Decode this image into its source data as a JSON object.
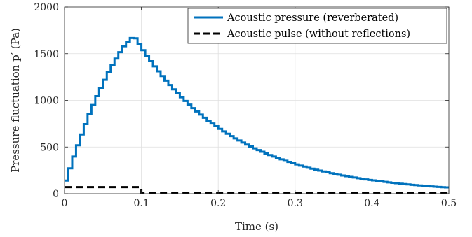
{
  "chart_data": {
    "type": "line",
    "title": "",
    "xlabel": "Time (s)",
    "ylabel": "Pressure fluctuation p′ (Pa)",
    "xlim": [
      0,
      0.5
    ],
    "ylim": [
      0,
      2000
    ],
    "xticks": [
      0,
      0.1,
      0.2,
      0.3,
      0.4,
      0.5
    ],
    "xtick_labels": [
      "0",
      "0.1",
      "0.2",
      "0.3",
      "0.4",
      "0.5"
    ],
    "yticks": [
      0,
      500,
      1000,
      1500,
      2000
    ],
    "ytick_labels": [
      "0",
      "500",
      "1000",
      "1500",
      "2000"
    ],
    "grid": true,
    "legend_position": "top-right",
    "series": [
      {
        "name": "Acoustic pressure (reverberated)",
        "color": "#0072BD",
        "style": "solid",
        "step_duration": 0.005,
        "values": [
          140,
          272,
          398,
          519,
          635,
          745,
          850,
          950,
          1045,
          1135,
          1220,
          1300,
          1376,
          1448,
          1516,
          1580,
          1625,
          1668,
          1665,
          1600,
          1537,
          1477,
          1419,
          1364,
          1311,
          1260,
          1211,
          1164,
          1118,
          1075,
          1033,
          993,
          954,
          917,
          881,
          847,
          814,
          782,
          752,
          723,
          695,
          668,
          642,
          617,
          593,
          570,
          548,
          526,
          506,
          486,
          467,
          449,
          431,
          414,
          398,
          383,
          368,
          353,
          340,
          326,
          314,
          301,
          290,
          278,
          268,
          257,
          247,
          238,
          228,
          219,
          211,
          203,
          195,
          187,
          180,
          173,
          166,
          160,
          153,
          147,
          142,
          136,
          131,
          126,
          121,
          116,
          112,
          107,
          103,
          99,
          95,
          92,
          88,
          85,
          81,
          78,
          75,
          72,
          69,
          67
        ]
      },
      {
        "name": "Acoustic pulse (without reflections)",
        "color": "#000000",
        "style": "dashed",
        "x": [
          0,
          0.1,
          0.1,
          0.5
        ],
        "y": [
          70,
          70,
          0,
          0
        ]
      }
    ]
  }
}
